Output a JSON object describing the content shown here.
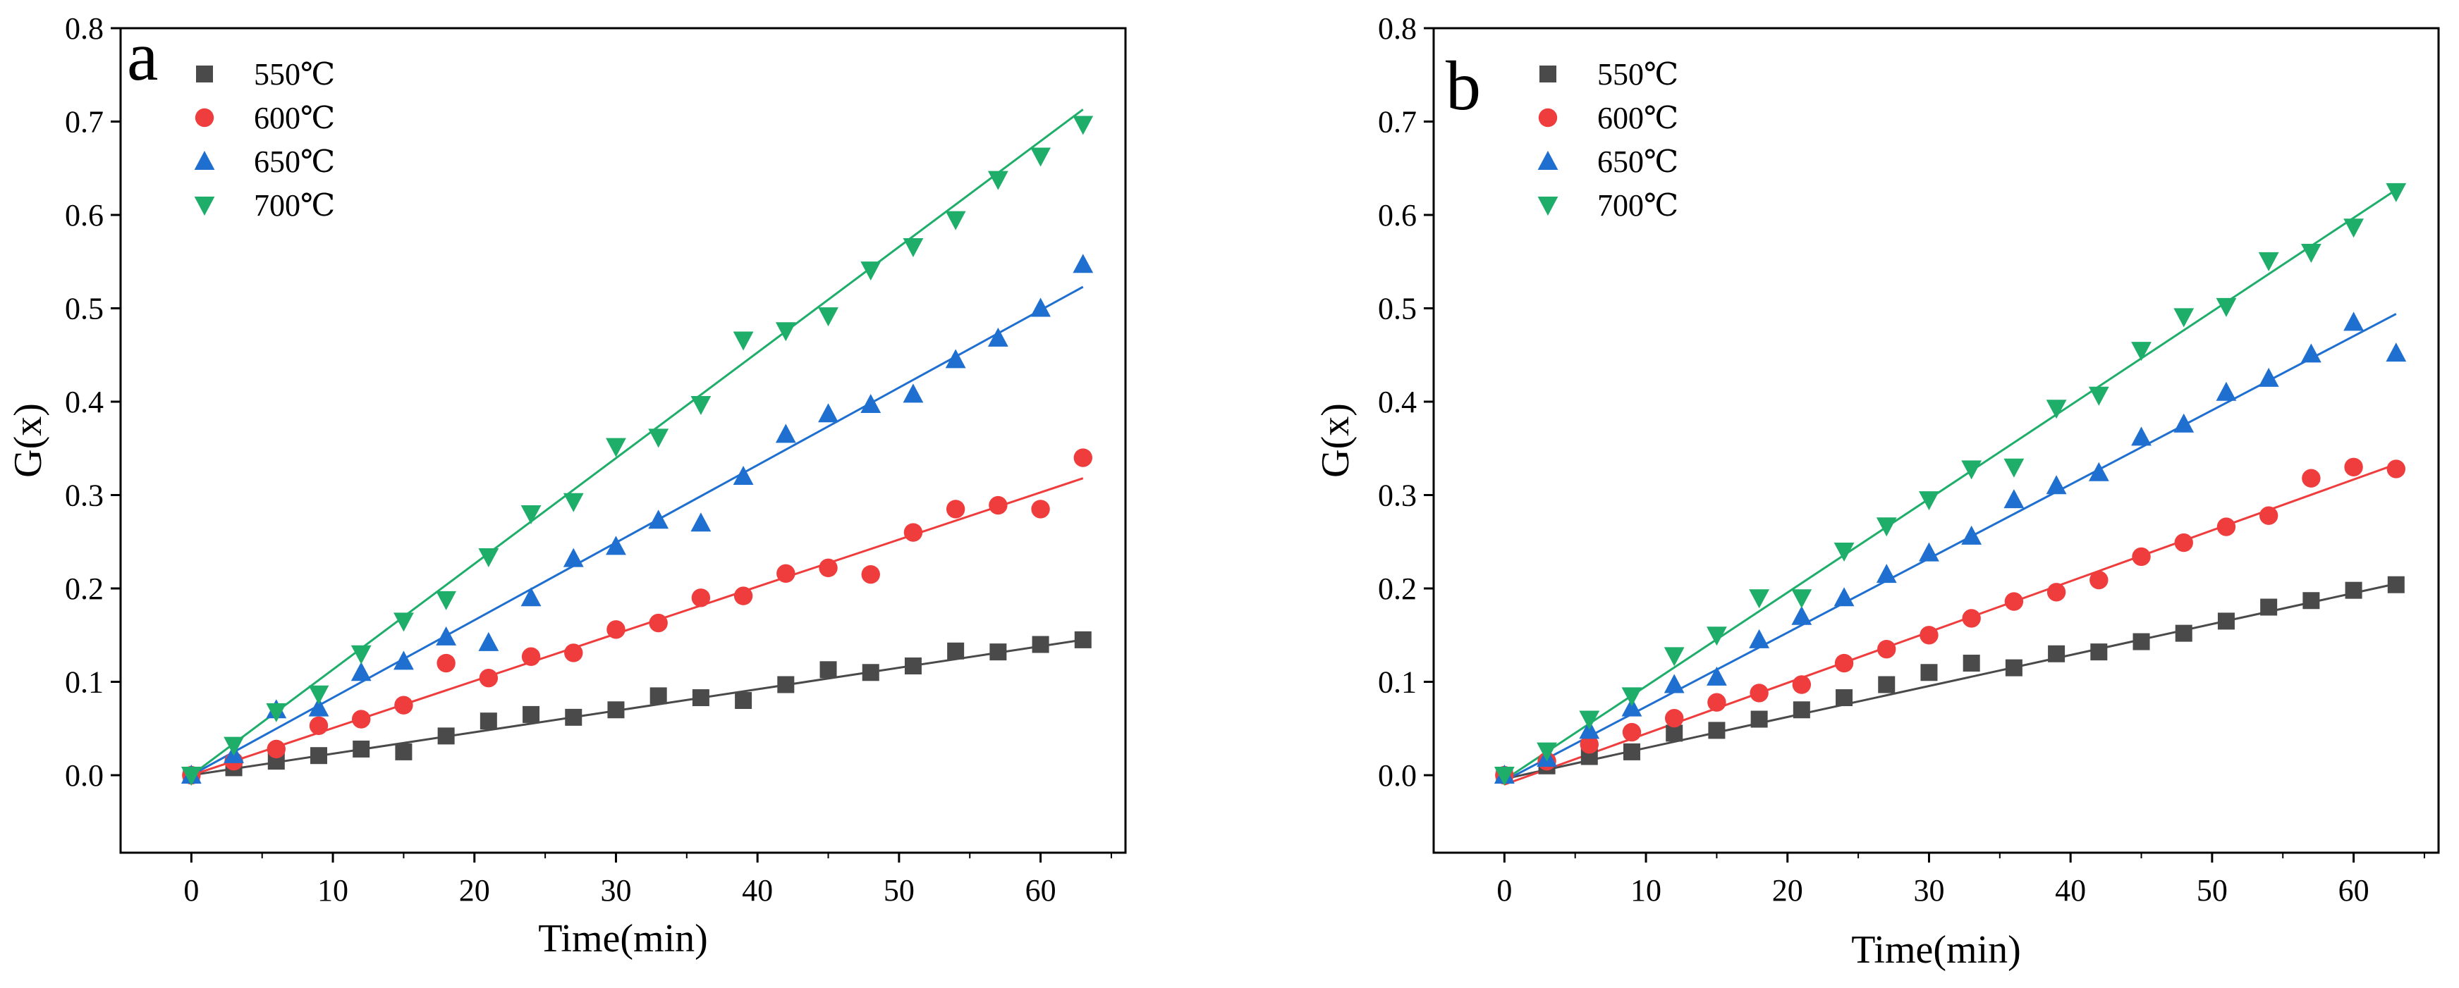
{
  "chart_data": [
    {
      "panel_label": "a",
      "type": "scatter",
      "xlabel": "Time(min)",
      "ylabel": "G(x)",
      "xlim": [
        -5,
        66
      ],
      "ylim": [
        -0.083,
        0.8
      ],
      "xticks": [
        0,
        10,
        20,
        30,
        40,
        50,
        60
      ],
      "xtick_labels": [
        "0",
        "10",
        "20",
        "30",
        "40",
        "50",
        "60"
      ],
      "yticks": [
        0.0,
        0.1,
        0.2,
        0.3,
        0.4,
        0.5,
        0.6,
        0.7,
        0.8
      ],
      "ytick_labels": [
        "0.0",
        "0.1",
        "0.2",
        "0.3",
        "0.4",
        "0.5",
        "0.6",
        "0.7",
        "0.8"
      ],
      "grid": false,
      "legend_position": "top-left",
      "series": [
        {
          "name": "550℃",
          "marker": "square",
          "color": "#4a4a4a",
          "x": [
            0,
            3,
            6,
            9,
            12,
            15,
            18,
            21,
            24,
            27,
            30,
            33,
            36,
            39,
            42,
            45,
            48,
            51,
            54,
            57,
            60,
            63
          ],
          "y": [
            0.0,
            0.008,
            0.015,
            0.021,
            0.028,
            0.025,
            0.042,
            0.058,
            0.065,
            0.062,
            0.07,
            0.085,
            0.083,
            0.08,
            0.097,
            0.113,
            0.11,
            0.117,
            0.133,
            0.132,
            0.14,
            0.145
          ],
          "fit": {
            "x": [
              0,
              63
            ],
            "y": [
              0.0,
              0.145
            ]
          }
        },
        {
          "name": "600℃",
          "marker": "circle",
          "color": "#ef3c3c",
          "x": [
            0,
            3,
            6,
            9,
            12,
            15,
            18,
            21,
            24,
            27,
            30,
            33,
            36,
            39,
            42,
            45,
            48,
            51,
            54,
            57,
            60,
            63
          ],
          "y": [
            0.0,
            0.015,
            0.028,
            0.053,
            0.06,
            0.075,
            0.12,
            0.104,
            0.127,
            0.131,
            0.156,
            0.163,
            0.19,
            0.192,
            0.216,
            0.222,
            0.215,
            0.26,
            0.285,
            0.289,
            0.285,
            0.34
          ],
          "fit": {
            "x": [
              0,
              63
            ],
            "y": [
              0.0,
              0.318
            ]
          }
        },
        {
          "name": "650℃",
          "marker": "triangle-up",
          "color": "#1e6fd0",
          "x": [
            0,
            3,
            6,
            9,
            12,
            15,
            18,
            21,
            24,
            27,
            30,
            33,
            36,
            39,
            42,
            45,
            48,
            51,
            54,
            57,
            60,
            63
          ],
          "y": [
            0.0,
            0.022,
            0.07,
            0.072,
            0.11,
            0.122,
            0.148,
            0.142,
            0.19,
            0.232,
            0.245,
            0.273,
            0.27,
            0.32,
            0.365,
            0.387,
            0.397,
            0.408,
            0.445,
            0.468,
            0.5,
            0.547
          ],
          "fit": {
            "x": [
              0,
              63
            ],
            "y": [
              0.0,
              0.523
            ]
          }
        },
        {
          "name": "700℃",
          "marker": "triangle-down",
          "color": "#1fae6a",
          "x": [
            0,
            3,
            6,
            9,
            12,
            15,
            18,
            21,
            24,
            27,
            30,
            33,
            36,
            39,
            42,
            45,
            48,
            51,
            54,
            57,
            60,
            63
          ],
          "y": [
            0.0,
            0.032,
            0.068,
            0.087,
            0.13,
            0.165,
            0.188,
            0.234,
            0.28,
            0.293,
            0.352,
            0.362,
            0.397,
            0.466,
            0.476,
            0.492,
            0.541,
            0.566,
            0.595,
            0.638,
            0.663,
            0.697
          ],
          "fit": {
            "x": [
              0,
              63
            ],
            "y": [
              0.0,
              0.713
            ]
          }
        }
      ]
    },
    {
      "panel_label": "b",
      "type": "scatter",
      "xlabel": "Time(min)",
      "ylabel": "G(x)",
      "xlim": [
        -5,
        66
      ],
      "ylim": [
        -0.083,
        0.8
      ],
      "xticks": [
        0,
        10,
        20,
        30,
        40,
        50,
        60
      ],
      "xtick_labels": [
        "0",
        "10",
        "20",
        "30",
        "40",
        "50",
        "60"
      ],
      "yticks": [
        0.0,
        0.1,
        0.2,
        0.3,
        0.4,
        0.5,
        0.6,
        0.7,
        0.8
      ],
      "ytick_labels": [
        "0.0",
        "0.1",
        "0.2",
        "0.3",
        "0.4",
        "0.5",
        "0.6",
        "0.7",
        "0.8"
      ],
      "grid": false,
      "legend_position": "top-left",
      "series": [
        {
          "name": "550℃",
          "marker": "square",
          "color": "#4a4a4a",
          "x": [
            0,
            3,
            6,
            9,
            12,
            15,
            18,
            21,
            24,
            27,
            30,
            33,
            36,
            39,
            42,
            45,
            48,
            51,
            54,
            57,
            60,
            63
          ],
          "y": [
            0.0,
            0.01,
            0.02,
            0.025,
            0.045,
            0.048,
            0.06,
            0.07,
            0.083,
            0.097,
            0.11,
            0.12,
            0.115,
            0.13,
            0.132,
            0.143,
            0.152,
            0.165,
            0.18,
            0.187,
            0.198,
            0.204
          ],
          "fit": {
            "x": [
              0,
              63
            ],
            "y": [
              -0.004,
              0.205
            ]
          }
        },
        {
          "name": "600℃",
          "marker": "circle",
          "color": "#ef3c3c",
          "x": [
            0,
            3,
            6,
            9,
            12,
            15,
            18,
            21,
            24,
            27,
            30,
            33,
            36,
            39,
            42,
            45,
            48,
            51,
            54,
            57,
            60,
            63
          ],
          "y": [
            0.0,
            0.015,
            0.033,
            0.046,
            0.061,
            0.078,
            0.088,
            0.097,
            0.12,
            0.135,
            0.15,
            0.168,
            0.186,
            0.196,
            0.209,
            0.234,
            0.249,
            0.266,
            0.278,
            0.318,
            0.33,
            0.328
          ],
          "fit": {
            "x": [
              0,
              63
            ],
            "y": [
              -0.01,
              0.333
            ]
          }
        },
        {
          "name": "650℃",
          "marker": "triangle-up",
          "color": "#1e6fd0",
          "x": [
            0,
            3,
            6,
            9,
            12,
            15,
            18,
            21,
            24,
            27,
            30,
            33,
            36,
            39,
            42,
            45,
            48,
            51,
            54,
            57,
            60,
            63
          ],
          "y": [
            0.0,
            0.018,
            0.048,
            0.072,
            0.097,
            0.105,
            0.145,
            0.17,
            0.19,
            0.215,
            0.238,
            0.256,
            0.295,
            0.31,
            0.324,
            0.362,
            0.376,
            0.41,
            0.425,
            0.451,
            0.485,
            0.452
          ],
          "fit": {
            "x": [
              0,
              63
            ],
            "y": [
              -0.006,
              0.494
            ]
          }
        },
        {
          "name": "700℃",
          "marker": "triangle-down",
          "color": "#1fae6a",
          "x": [
            0,
            3,
            6,
            9,
            12,
            15,
            18,
            21,
            24,
            27,
            30,
            33,
            36,
            39,
            42,
            45,
            48,
            51,
            54,
            57,
            60,
            63
          ],
          "y": [
            0.0,
            0.026,
            0.06,
            0.085,
            0.128,
            0.15,
            0.19,
            0.19,
            0.24,
            0.267,
            0.295,
            0.328,
            0.33,
            0.393,
            0.407,
            0.455,
            0.491,
            0.502,
            0.551,
            0.56,
            0.587,
            0.625
          ],
          "fit": {
            "x": [
              0,
              63
            ],
            "y": [
              -0.005,
              0.627
            ]
          }
        }
      ]
    }
  ]
}
